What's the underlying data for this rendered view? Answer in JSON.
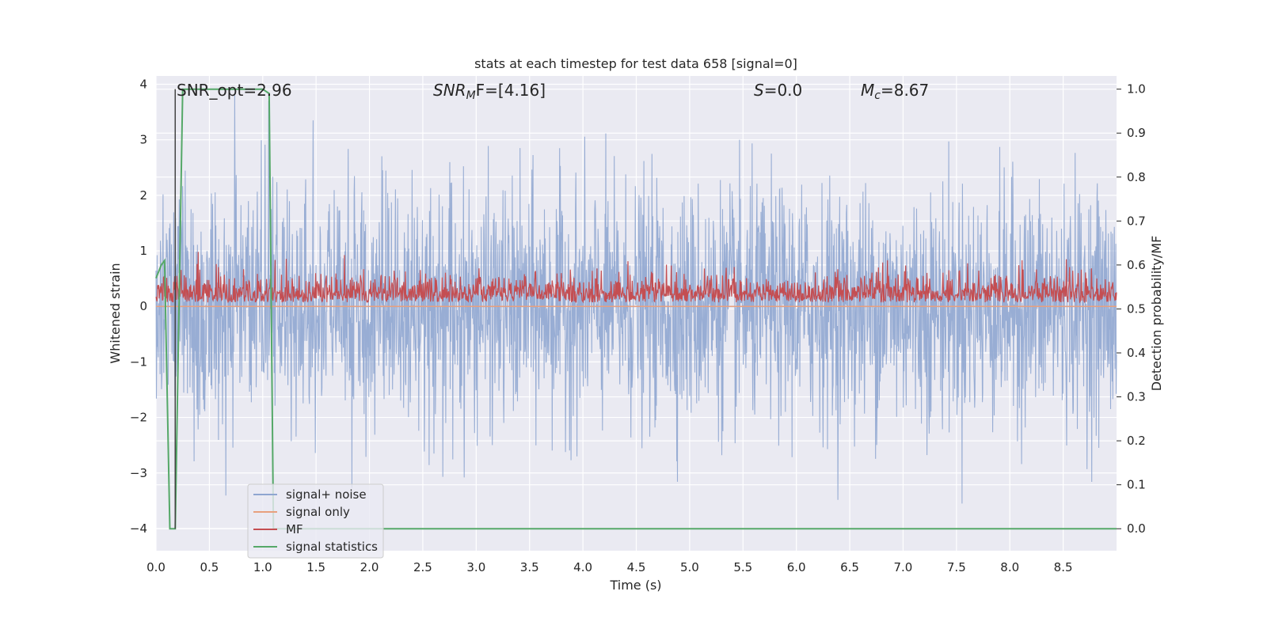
{
  "chart_data": {
    "type": "line",
    "title": "stats at each timestep for test data 658 [signal=0]",
    "xlabel": "Time (s)",
    "ylabel_left": "Whitened strain",
    "ylabel_right": "Detection probability/MF",
    "xlim": [
      0.0,
      9.0
    ],
    "ylim_left": [
      -4.4,
      4.15
    ],
    "ylim_right": [
      -0.05,
      1.03
    ],
    "xticks": [
      "0.0",
      "0.5",
      "1.0",
      "1.5",
      "2.0",
      "2.5",
      "3.0",
      "3.5",
      "4.0",
      "4.5",
      "5.0",
      "5.5",
      "6.0",
      "6.5",
      "7.0",
      "7.5",
      "8.0",
      "8.5"
    ],
    "yticks_left": [
      "−4",
      "−3",
      "−2",
      "−1",
      "0",
      "1",
      "2",
      "3",
      "4"
    ],
    "yticks_right": [
      "0.0",
      "0.1",
      "0.2",
      "0.3",
      "0.4",
      "0.5",
      "0.6",
      "0.7",
      "0.8",
      "0.9",
      "1.0"
    ],
    "grid": true,
    "legend_position": "lower-left",
    "annotations": {
      "snr_opt": "SNR_opt=2.96",
      "snr_mf_base": "SNR",
      "snr_mf_sub": "M",
      "snr_mf_rest": "F=[4.16]",
      "s_var": "S",
      "s_rest": "=0.0",
      "mc_base": "M",
      "mc_sub": "c",
      "mc_rest": "=8.67"
    },
    "series": [
      {
        "name": "signal+ noise",
        "color": "#8fa6d0",
        "axis": "left",
        "note": "noise envelope approx ±1.5 with spikes up to ±4"
      },
      {
        "name": "signal only",
        "color": "#e8a07e",
        "axis": "left",
        "values_all": 0.0
      },
      {
        "name": "MF",
        "color": "#c44e52",
        "axis": "right",
        "range": [
          0.5,
          0.63
        ]
      },
      {
        "name": "signal statistics",
        "color": "#55a868",
        "axis": "right",
        "points": [
          [
            0.0,
            0.57
          ],
          [
            0.05,
            0.6
          ],
          [
            0.08,
            0.61
          ],
          [
            0.13,
            0.0
          ],
          [
            0.18,
            0.0
          ],
          [
            0.25,
            1.0
          ],
          [
            1.0,
            1.0
          ],
          [
            1.06,
            0.99
          ],
          [
            1.1,
            0.0
          ],
          [
            9.0,
            0.0
          ]
        ]
      }
    ],
    "marker_line_x": 0.18,
    "colors": {
      "background": "#eaeaf2",
      "grid": "#ffffff",
      "noise": "#8fa6d0",
      "signal": "#e8a07e",
      "mf": "#c44e52",
      "stats": "#55a868",
      "marker": "#444444"
    }
  }
}
